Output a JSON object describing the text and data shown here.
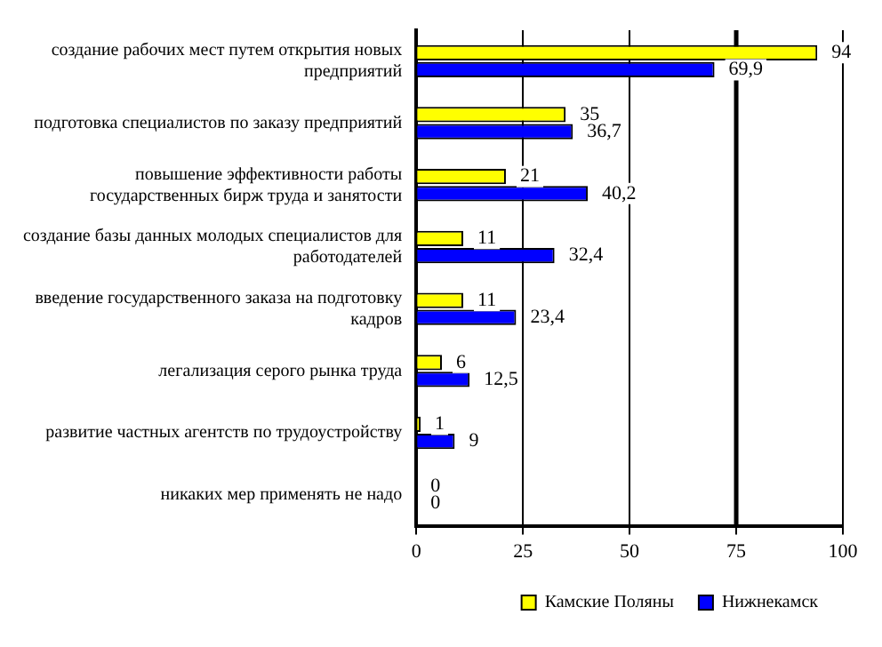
{
  "chart_data": {
    "type": "bar",
    "orientation": "horizontal",
    "categories": [
      "создание рабочих мест путем открытия новых предприятий",
      "подготовка специалистов по заказу предприятий",
      "повышение эффективности работы государственных бирж труда и занятости",
      "создание базы данных молодых специалистов для работодателей",
      "введение государственного заказа на подготовку кадров",
      "легализация серого рынка труда",
      "развитие частных агентств по трудоустройству",
      "никаких мер применять не надо"
    ],
    "series": [
      {
        "name": "Камские Поляны",
        "color": "#ffff00",
        "values": [
          94,
          35,
          21,
          11,
          11,
          6,
          1,
          0
        ],
        "value_labels": [
          "94",
          "35",
          "21",
          "11",
          "11",
          "6",
          "1",
          "0"
        ]
      },
      {
        "name": "Нижнекамск",
        "color": "#0000ff",
        "values": [
          69.9,
          36.7,
          40.2,
          32.4,
          23.4,
          12.5,
          9,
          0
        ],
        "value_labels": [
          "69,9",
          "36,7",
          "40,2",
          "32,4",
          "23,4",
          "12,5",
          "9",
          "0"
        ]
      }
    ],
    "xlim": [
      0,
      100
    ],
    "xticks": [
      0,
      25,
      50,
      75,
      100
    ],
    "grid": "x",
    "legend": "bottom",
    "ref_lines": [
      {
        "axis": "x",
        "value": 75,
        "color": "#000000"
      }
    ]
  }
}
